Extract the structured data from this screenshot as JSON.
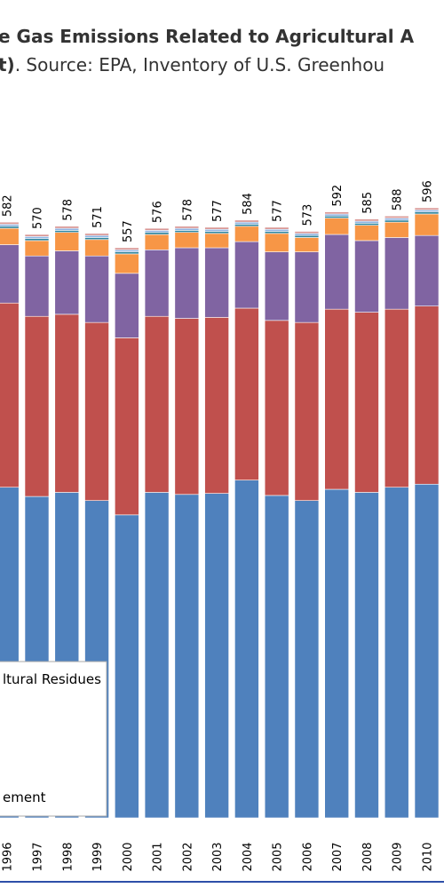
{
  "chart_data": {
    "type": "stacked_bar",
    "title": "e Gas Emissions Related to Agricultural A",
    "subtitle_bold": "t)",
    "subtitle": ". Source: EPA, Inventory of U.S. Greenhou",
    "categories": [
      "1996",
      "1997",
      "1998",
      "1999",
      "2000",
      "2001",
      "2002",
      "2003",
      "2004",
      "2005",
      "2006",
      "2007",
      "2008",
      "2009",
      "2010"
    ],
    "totals": [
      582,
      570,
      578,
      571,
      557,
      576,
      578,
      577,
      584,
      577,
      573,
      592,
      585,
      588,
      596
    ],
    "series": [
      {
        "name": "ement",
        "color": "#4f81bd",
        "values": [
          323,
          314,
          318,
          310,
          296,
          318,
          316,
          317,
          330,
          315,
          310,
          321,
          318,
          323,
          326
        ]
      },
      {
        "color": "#c0504d",
        "values": [
          180,
          176,
          174,
          174,
          173,
          172,
          172,
          172,
          168,
          171,
          174,
          176,
          176,
          174,
          174
        ]
      },
      {
        "color": "#8064a2",
        "values": [
          57,
          59,
          62,
          65,
          63,
          65,
          69,
          68,
          65,
          67,
          69,
          73,
          70,
          70,
          69
        ]
      },
      {
        "color": "#f79646",
        "values": [
          16,
          15,
          18,
          16,
          19,
          15,
          15,
          14,
          15,
          18,
          14,
          16,
          15,
          15,
          21
        ]
      },
      {
        "color": "#31859c",
        "values": [
          2,
          2,
          2,
          2,
          2,
          2,
          2,
          2,
          2,
          2,
          2,
          2,
          2,
          2,
          2
        ]
      },
      {
        "color": "#8fb4e3",
        "values": [
          2,
          2,
          2,
          2,
          2,
          2,
          2,
          2,
          2,
          2,
          2,
          2,
          2,
          2,
          2
        ]
      },
      {
        "name": "ltural Residues",
        "color": "#d99694",
        "values": [
          2,
          2,
          2,
          2,
          2,
          2,
          2,
          2,
          2,
          2,
          2,
          2,
          2,
          2,
          2
        ]
      }
    ],
    "legend_order": [
      6,
      0
    ]
  }
}
